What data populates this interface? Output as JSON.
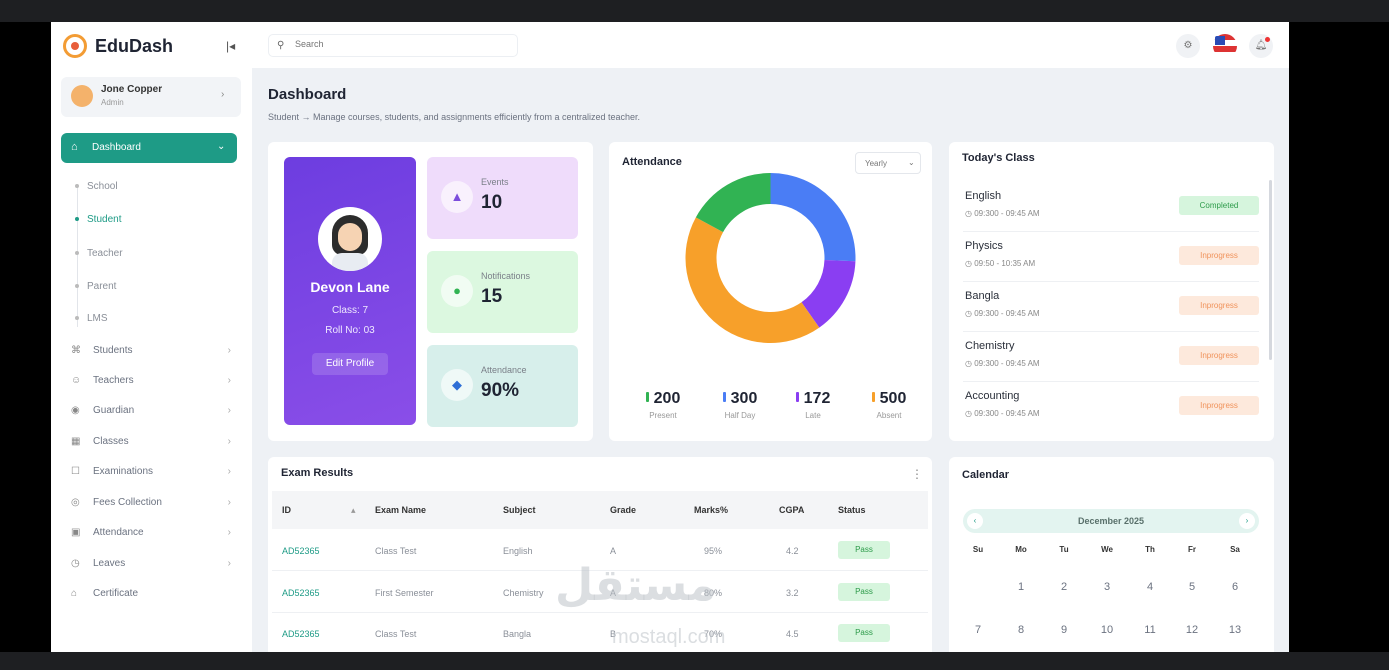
{
  "app": {
    "name": "EduDash"
  },
  "user": {
    "name": "Jone Copper",
    "role": "Admin"
  },
  "search": {
    "placeholder": "Search"
  },
  "nav": {
    "active": "Dashboard",
    "sub": [
      "School",
      "Student",
      "Teacher",
      "Parent",
      "LMS"
    ],
    "items": [
      {
        "label": "Students",
        "icon": "graduation-cap-icon"
      },
      {
        "label": "Teachers",
        "icon": "user-icon"
      },
      {
        "label": "Guardian",
        "icon": "shield-icon"
      },
      {
        "label": "Classes",
        "icon": "grid-icon"
      },
      {
        "label": "Examinations",
        "icon": "clipboard-icon"
      },
      {
        "label": "Fees Collection",
        "icon": "coin-icon"
      },
      {
        "label": "Attendance",
        "icon": "calendar-icon"
      },
      {
        "label": "Leaves",
        "icon": "clock-icon"
      },
      {
        "label": "Certificate",
        "icon": "award-icon"
      }
    ]
  },
  "page": {
    "title": "Dashboard",
    "breadcrumb": "Student → Manage courses, students, and assignments efficiently from a centralized teacher."
  },
  "profile": {
    "name": "Devon Lane",
    "class": "Class: 7",
    "roll": "Roll No: 03",
    "edit": "Edit Profile"
  },
  "stats": [
    {
      "label": "Events",
      "value": "10",
      "color": "#efdcfb",
      "icon_color": "#7c4ddc",
      "icon": "person-icon"
    },
    {
      "label": "Notifications",
      "value": "15",
      "color": "#dcf8e0",
      "icon_color": "#31b353",
      "icon": "chat-icon"
    },
    {
      "label": "Attendance",
      "value": "90%",
      "color": "#d7efeb",
      "icon_color": "#2e6fd6",
      "icon": "id-icon"
    }
  ],
  "attendance": {
    "title": "Attendance",
    "period": "Yearly"
  },
  "chart_data": {
    "type": "pie",
    "donut": true,
    "series": [
      {
        "name": "Present",
        "value": 200,
        "color": "#31b353"
      },
      {
        "name": "Half Day",
        "value": 300,
        "color": "#4a7df5"
      },
      {
        "name": "Late",
        "value": 172,
        "color": "#8a3ef2"
      },
      {
        "name": "Absent",
        "value": 500,
        "color": "#f7a02a"
      }
    ]
  },
  "today": {
    "title": "Today's Class",
    "classes": [
      {
        "name": "English",
        "time": "09:300 - 09:45 AM",
        "status": "Completed",
        "kind": "done"
      },
      {
        "name": "Physics",
        "time": "09:50 - 10:35 AM",
        "status": "Inprogress",
        "kind": "prog"
      },
      {
        "name": "Bangla",
        "time": "09:300 - 09:45 AM",
        "status": "Inprogress",
        "kind": "prog"
      },
      {
        "name": "Chemistry",
        "time": "09:300 - 09:45 AM",
        "status": "Inprogress",
        "kind": "prog"
      },
      {
        "name": "Accounting",
        "time": "09:300 - 09:45 AM",
        "status": "Inprogress",
        "kind": "prog"
      }
    ]
  },
  "exam": {
    "title": "Exam Results",
    "columns": [
      "ID",
      "Exam Name",
      "Subject",
      "Grade",
      "Marks%",
      "CGPA",
      "Status"
    ],
    "rows": [
      [
        "AD52365",
        "Class Test",
        "English",
        "A",
        "95%",
        "4.2",
        "Pass"
      ],
      [
        "AD52365",
        "First Semester",
        "Chemistry",
        "A",
        "80%",
        "3.2",
        "Pass"
      ],
      [
        "AD52365",
        "Class Test",
        "Bangla",
        "B",
        "70%",
        "4.5",
        "Pass"
      ]
    ]
  },
  "calendar": {
    "title": "Calendar",
    "month": "December 2025",
    "dow": [
      "Su",
      "Mo",
      "Tu",
      "We",
      "Th",
      "Fr",
      "Sa"
    ],
    "week1": [
      "1",
      "2",
      "3",
      "4",
      "5",
      "6"
    ],
    "week2": [
      "7",
      "8",
      "9",
      "10",
      "11",
      "12",
      "13"
    ]
  },
  "watermark": {
    "arabic": "مستقل",
    "latin": "mostaql.com"
  }
}
